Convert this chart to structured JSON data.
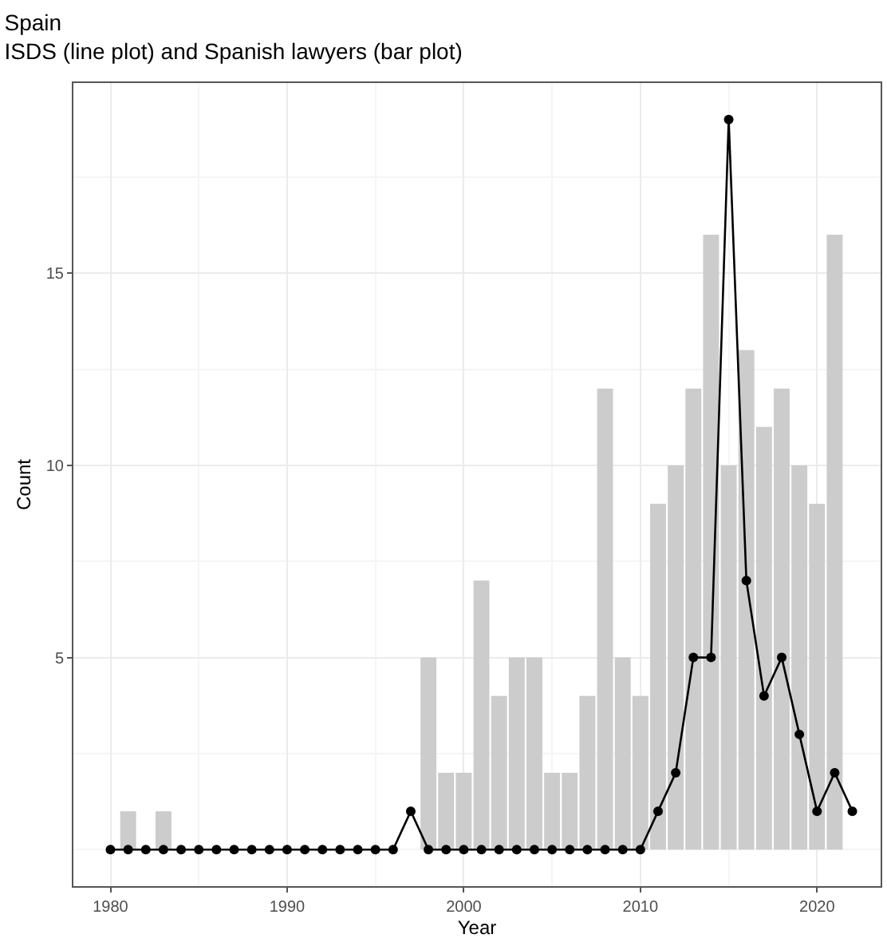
{
  "chart_data": {
    "type": "bar",
    "title": "Spain",
    "subtitle": "ISDS (line plot) and Spanish lawyers (bar plot)",
    "xlabel": "Year",
    "ylabel": "Count",
    "series": [
      {
        "color": "#cccccc",
        "x": [
          1981,
          1983,
          1998,
          1999,
          2000,
          2001,
          2002,
          2003,
          2004,
          2005,
          2006,
          2007,
          2008,
          2009,
          2010,
          2011,
          2012,
          2013,
          2014,
          2015,
          2016,
          2017,
          2018,
          2019,
          2020,
          2021
        ],
        "values": [
          1,
          1,
          5,
          2,
          2,
          7,
          4,
          5,
          5,
          2,
          2,
          4,
          12,
          5,
          4,
          9,
          10,
          12,
          16,
          10,
          13,
          11,
          12,
          10,
          9,
          16
        ]
      },
      {
        "type": "line",
        "color": "#000000",
        "marker": "circle",
        "line_style": "solid",
        "x": [
          1980,
          1981,
          1982,
          1983,
          1984,
          1985,
          1986,
          1987,
          1988,
          1989,
          1990,
          1991,
          1992,
          1993,
          1994,
          1995,
          1996,
          1997,
          1998,
          1999,
          2000,
          2001,
          2002,
          2003,
          2004,
          2005,
          2006,
          2007,
          2008,
          2009,
          2010,
          2011,
          2012,
          2013,
          2014,
          2015,
          2016,
          2017,
          2018,
          2019,
          2020,
          2021,
          2022
        ],
        "values": [
          0,
          0,
          0,
          0,
          0,
          0,
          0,
          0,
          0,
          0,
          0,
          0,
          0,
          0,
          0,
          0,
          0,
          1,
          0,
          0,
          0,
          0,
          0,
          0,
          0,
          0,
          0,
          0,
          0,
          0,
          0,
          1,
          2,
          5,
          5,
          19,
          7,
          4,
          5,
          3,
          1,
          2,
          1
        ]
      }
    ],
    "xlim": [
      1977.9,
      2023.6
    ],
    "xticks": [
      1980,
      1990,
      2000,
      2010,
      2020
    ],
    "ylim": [
      -0.95,
      19.95
    ],
    "yticks": [
      5,
      10,
      15
    ],
    "grid": true
  }
}
